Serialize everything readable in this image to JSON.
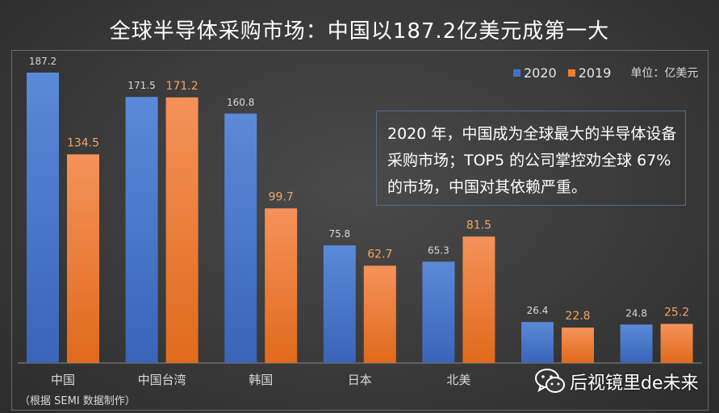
{
  "title": "全球半导体采购市场：中国以187.2亿美元成第一大",
  "annotation": "2020 年，中国成为全球最大的半导体设备采购市场；TOP5 的公司掌控劝全球 67%的市场，中国对其依赖严重。",
  "unit": "单位：亿美元",
  "source": "（根据 SEMI 数据制作）",
  "watermark": {
    "text": "后视镜里de未来",
    "icon": "wechat-icon"
  },
  "colors": {
    "2020": "#4472c4",
    "2019": "#ed7d31",
    "label_2020": "#d9d9d9",
    "label_2019": "#f4a460"
  },
  "chart_data": {
    "type": "bar",
    "categories": [
      "中国",
      "中国台湾",
      "韩国",
      "日本",
      "北美",
      "",
      ""
    ],
    "series": [
      {
        "name": "2020",
        "values": [
          187.2,
          171.5,
          160.8,
          75.8,
          65.3,
          26.4,
          24.8
        ]
      },
      {
        "name": "2019",
        "values": [
          134.5,
          171.2,
          99.7,
          62.7,
          81.5,
          22.8,
          25.2
        ]
      }
    ],
    "ylim": [
      0,
      190
    ],
    "legend": "top-right",
    "grid": false
  }
}
